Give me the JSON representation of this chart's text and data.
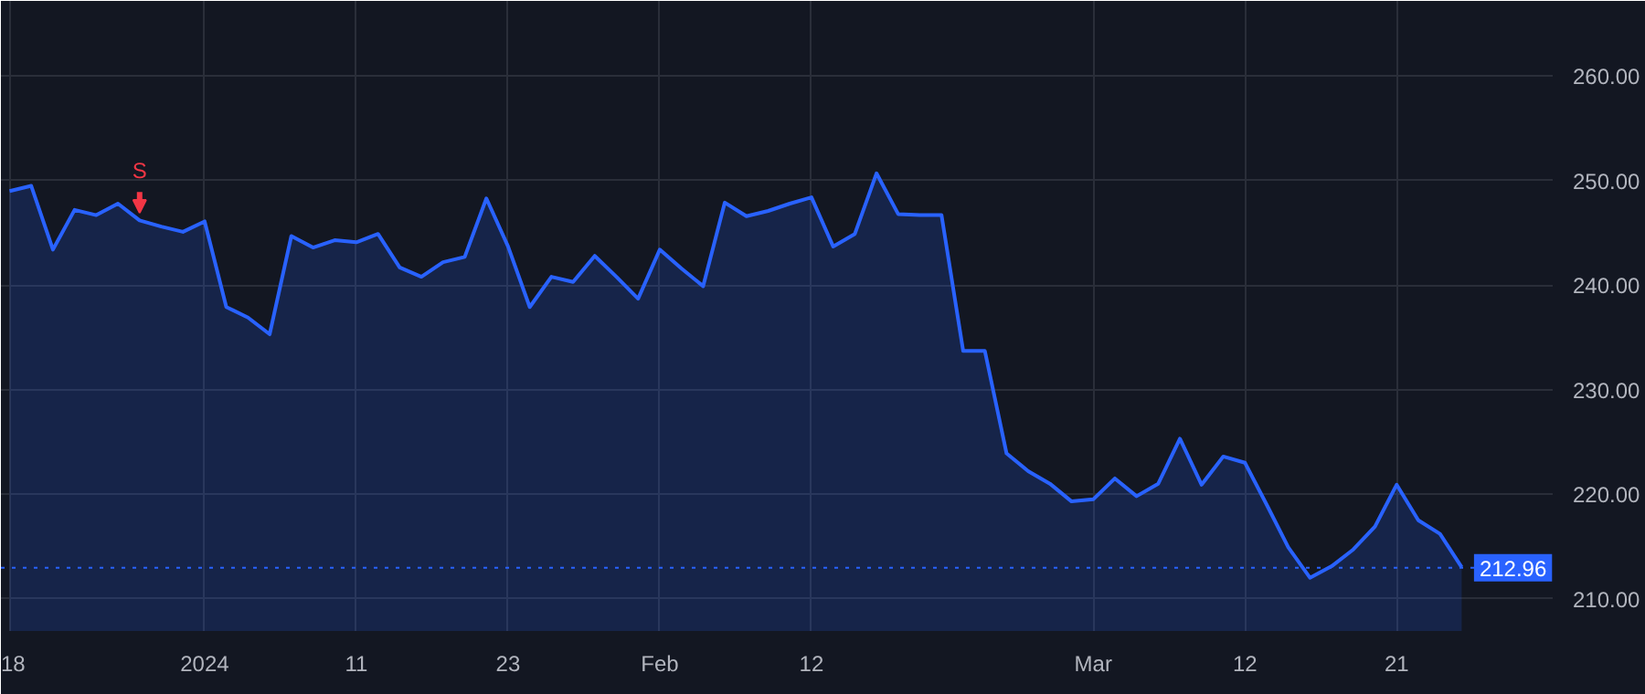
{
  "chart_data": {
    "type": "area",
    "categories": [
      "18",
      null,
      null,
      null,
      null,
      null,
      null,
      null,
      null,
      "2024",
      null,
      null,
      null,
      null,
      null,
      null,
      "11",
      null,
      null,
      null,
      null,
      null,
      null,
      "23",
      null,
      null,
      null,
      null,
      null,
      null,
      "Feb",
      null,
      null,
      null,
      null,
      null,
      null,
      "12",
      null,
      null,
      null,
      null,
      null,
      null,
      null,
      null,
      null,
      null,
      null,
      null,
      "Mar",
      null,
      null,
      null,
      null,
      null,
      null,
      "12",
      null,
      null,
      null,
      null,
      null,
      null,
      "21",
      null,
      null,
      null
    ],
    "series": [
      {
        "color": "#2962ff",
        "values": [
          249.0,
          249.5,
          243.4,
          247.2,
          246.7,
          247.8,
          246.2,
          245.6,
          245.1,
          246.1,
          237.9,
          236.9,
          235.3,
          244.7,
          243.6,
          244.3,
          244.1,
          244.9,
          241.7,
          240.8,
          242.2,
          242.7,
          248.3,
          243.7,
          237.9,
          240.8,
          240.3,
          242.8,
          240.8,
          238.7,
          243.4,
          241.6,
          239.9,
          247.9,
          246.6,
          247.1,
          247.8,
          248.4,
          243.7,
          244.9,
          250.7,
          246.8,
          246.7,
          246.7,
          233.7,
          233.7,
          223.9,
          222.2,
          221.0,
          219.3,
          219.5,
          221.5,
          219.8,
          221.0,
          225.3,
          220.9,
          223.6,
          223.0,
          219.0,
          214.9,
          212.0,
          213.1,
          214.7,
          216.9,
          220.9,
          217.5,
          216.2,
          213.0
        ]
      }
    ],
    "ylim": [
      206.9,
      267.2
    ],
    "yticks": [
      {
        "value": 210,
        "label": "210.00"
      },
      {
        "value": 220,
        "label": "220.00"
      },
      {
        "value": 230,
        "label": "230.00"
      },
      {
        "value": 240,
        "label": "240.00"
      },
      {
        "value": 250,
        "label": "250.00"
      },
      {
        "value": 260,
        "label": "260.00"
      }
    ],
    "ref_lines": [
      {
        "axis": "y",
        "value": 212.96,
        "label": "212.96",
        "color": "#2962ff",
        "line_style": "dotted"
      }
    ],
    "annotations": [
      {
        "text": "S",
        "y": 246.2
      }
    ],
    "grid": true,
    "marker": "none",
    "line_style": "solid"
  }
}
